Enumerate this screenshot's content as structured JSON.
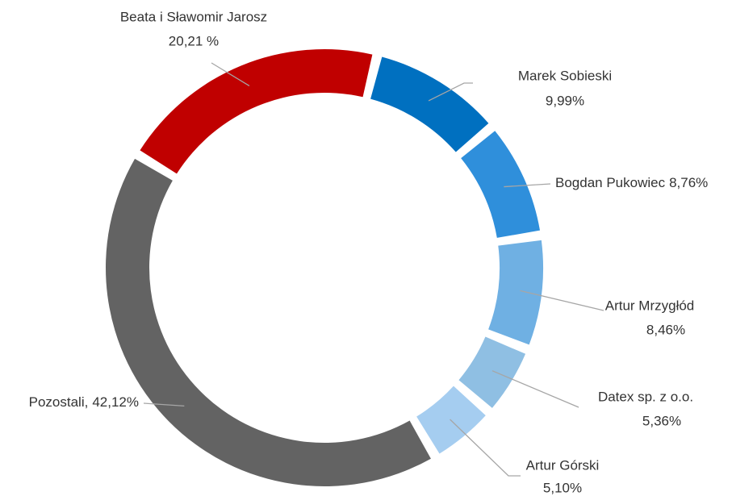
{
  "chart_data": {
    "type": "donut",
    "categories": [
      "Beata i Sławomir Jarosz",
      "Marek Sobieski",
      "Bogdan Pukowiec",
      "Artur Mrzygłód",
      "Datex sp. z o.o.",
      "Artur Górski",
      "Pozostali,"
    ],
    "values": [
      20.21,
      9.99,
      8.76,
      8.46,
      5.36,
      5.1,
      42.12
    ],
    "value_labels": [
      "20,21 %",
      "9,99%",
      "8,76%",
      "8,46%",
      "5,36%",
      "5,10%",
      "42,12%"
    ],
    "colors": [
      "#c00000",
      "#0070c0",
      "#2f8fdb",
      "#6fb0e3",
      "#8fbfe3",
      "#a5cdf0",
      "#636363"
    ]
  }
}
